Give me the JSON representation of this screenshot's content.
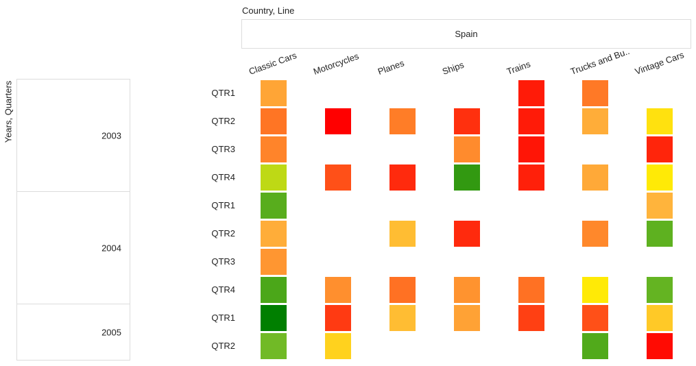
{
  "axis": {
    "column_dimension_title": "Country, Line",
    "row_dimension_title": "Years, Quarters",
    "country": "Spain"
  },
  "chart_data": {
    "type": "heatmap",
    "title": "",
    "xlabel": "Country, Line",
    "ylabel": "Years, Quarters",
    "x_group": "Spain",
    "x": [
      "Classic Cars",
      "Motorcycles",
      "Planes",
      "Ships",
      "Trains",
      "Trucks and Bu..",
      "Vintage Cars"
    ],
    "year_groups": [
      {
        "year": "2003",
        "rows": 4
      },
      {
        "year": "2004",
        "rows": 4
      },
      {
        "year": "2005",
        "rows": 2
      }
    ],
    "y": [
      "QTR1",
      "QTR2",
      "QTR3",
      "QTR4",
      "QTR1",
      "QTR2",
      "QTR3",
      "QTR4",
      "QTR1",
      "QTR2"
    ],
    "color_scale": [
      "#ff0000",
      "#ff6a20",
      "#ffb43c",
      "#fff000",
      "#7dc12a",
      "#007f00"
    ],
    "values": [
      [
        0.36,
        null,
        null,
        null,
        0.05,
        0.24,
        null
      ],
      [
        0.23,
        0.0,
        0.25,
        0.09,
        0.05,
        0.38,
        0.55
      ],
      [
        0.27,
        null,
        null,
        0.29,
        0.04,
        null,
        0.07
      ],
      [
        0.7,
        0.15,
        0.08,
        0.92,
        0.06,
        0.37,
        0.58
      ],
      [
        0.86,
        null,
        null,
        null,
        null,
        null,
        0.4
      ],
      [
        0.38,
        null,
        0.43,
        0.08,
        null,
        0.28,
        0.85
      ],
      [
        0.32,
        null,
        null,
        null,
        null,
        null,
        null
      ],
      [
        0.88,
        0.3,
        0.22,
        0.31,
        0.22,
        0.58,
        0.84
      ],
      [
        1.0,
        0.11,
        0.43,
        0.35,
        0.12,
        0.15,
        0.47
      ],
      [
        0.82,
        0.5,
        null,
        null,
        null,
        0.87,
        0.02
      ]
    ]
  }
}
